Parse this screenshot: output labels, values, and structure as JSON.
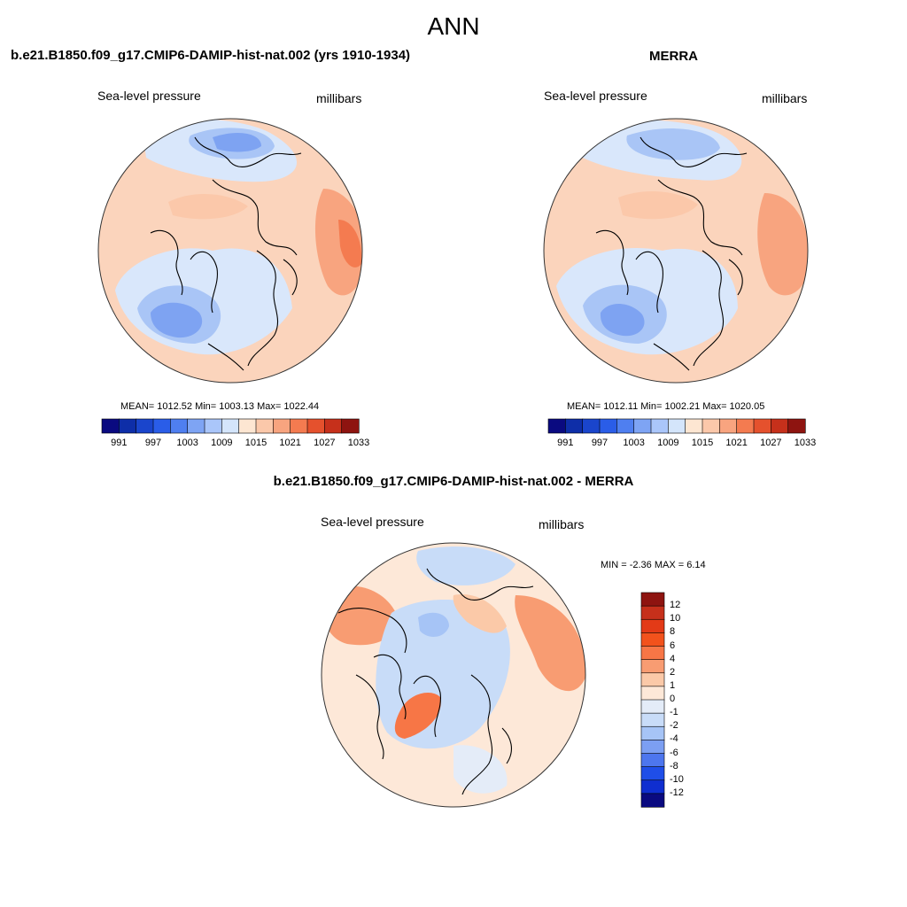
{
  "page": {
    "title": "ANN"
  },
  "panels": [
    {
      "title": "b.e21.B1850.f09_g17.CMIP6-DAMIP-hist-nat.002 (yrs 1910-1934)",
      "left_label": "Sea-level pressure",
      "right_label": "millibars",
      "stats_text": "MEAN= 1012.52  Min= 1003.13  Max= 1022.44"
    },
    {
      "title": "MERRA",
      "left_label": "Sea-level pressure",
      "right_label": "millibars",
      "stats_text": "MEAN= 1012.11  Min= 1002.21  Max= 1020.05"
    },
    {
      "title": "b.e21.B1850.f09_g17.CMIP6-DAMIP-hist-nat.002 - MERRA",
      "left_label": "Sea-level pressure",
      "right_label": "millibars",
      "stats_text": "MIN =  -2.36 MAX =   6.14"
    }
  ],
  "chart_data": [
    {
      "type": "heatmap",
      "projection": "north-polar-stereographic",
      "title": "b.e21.B1850.f09_g17.CMIP6-DAMIP-hist-nat.002 (yrs 1910-1934)",
      "variable": "Sea-level pressure",
      "units": "millibars",
      "mean": 1012.52,
      "min": 1003.13,
      "max": 1022.44,
      "colorbar": {
        "orientation": "horizontal",
        "tick_labels": [
          "991",
          "997",
          "1003",
          "1009",
          "1015",
          "1021",
          "1027",
          "1033"
        ],
        "colors": [
          "#0a0a80",
          "#0e2ea8",
          "#1a45cc",
          "#2a5de8",
          "#4f7ff0",
          "#7ea4f4",
          "#aac6fa",
          "#d4e5fb",
          "#fde6d2",
          "#fbc8aa",
          "#f8a47f",
          "#f47b50",
          "#e5512d",
          "#c6301b",
          "#8e1410"
        ]
      }
    },
    {
      "type": "heatmap",
      "projection": "north-polar-stereographic",
      "title": "MERRA",
      "variable": "Sea-level pressure",
      "units": "millibars",
      "mean": 1012.11,
      "min": 1002.21,
      "max": 1020.05,
      "colorbar": {
        "orientation": "horizontal",
        "tick_labels": [
          "991",
          "997",
          "1003",
          "1009",
          "1015",
          "1021",
          "1027",
          "1033"
        ],
        "colors": [
          "#0a0a80",
          "#0e2ea8",
          "#1a45cc",
          "#2a5de8",
          "#4f7ff0",
          "#7ea4f4",
          "#aac6fa",
          "#d4e5fb",
          "#fde6d2",
          "#fbc8aa",
          "#f8a47f",
          "#f47b50",
          "#e5512d",
          "#c6301b",
          "#8e1410"
        ]
      }
    },
    {
      "type": "heatmap",
      "projection": "north-polar-stereographic",
      "title": "b.e21.B1850.f09_g17.CMIP6-DAMIP-hist-nat.002 - MERRA",
      "variable": "Sea-level pressure",
      "units": "millibars",
      "min": -2.36,
      "max": 6.14,
      "colorbar": {
        "orientation": "vertical",
        "tick_labels": [
          "12",
          "10",
          "8",
          "6",
          "4",
          "2",
          "1",
          "0",
          "-1",
          "-2",
          "-4",
          "-6",
          "-8",
          "-10",
          "-12"
        ],
        "colors": [
          "#8e1410",
          "#c6301b",
          "#e33a17",
          "#f2521c",
          "#f77646",
          "#f89c72",
          "#fbc9a8",
          "#fde8d8",
          "#e4ecf8",
          "#c8dcf8",
          "#a6c4f6",
          "#7c9ff2",
          "#4d76ee",
          "#1f4ee8",
          "#0f2ed0",
          "#0a0a80"
        ]
      }
    }
  ]
}
